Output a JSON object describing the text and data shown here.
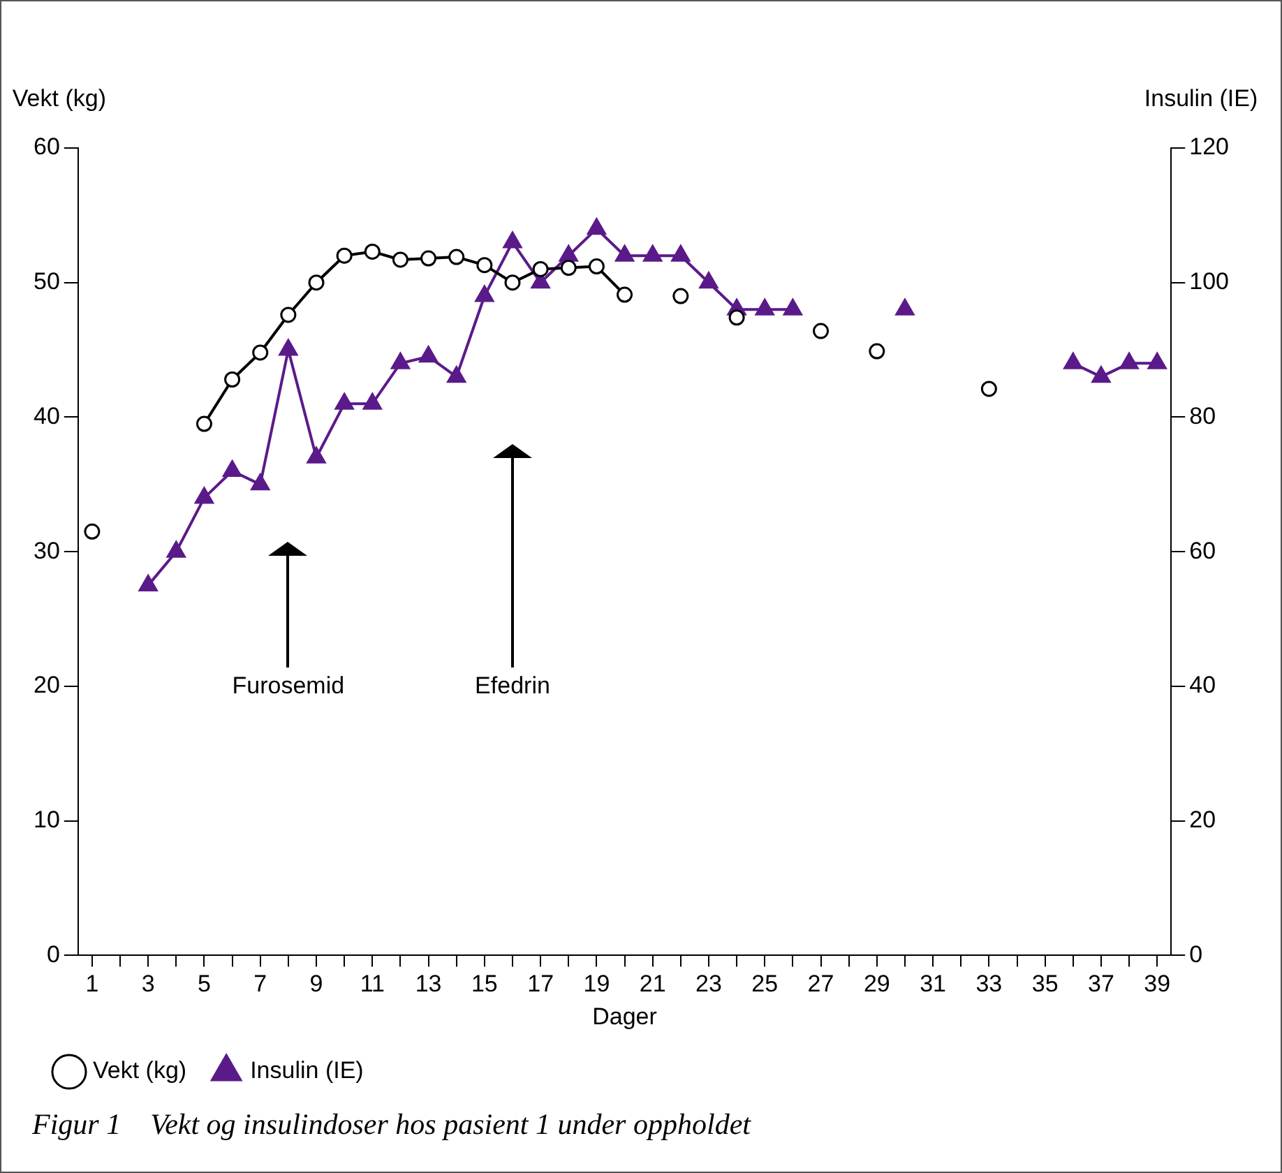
{
  "chart_data": {
    "type": "line",
    "xlabel": "Dager",
    "ylabel": "Vekt (kg)",
    "y2label": "Insulin (IE)",
    "x": [
      1,
      2,
      3,
      4,
      5,
      6,
      7,
      8,
      9,
      10,
      11,
      12,
      13,
      14,
      15,
      16,
      17,
      18,
      19,
      20,
      21,
      22,
      23,
      24,
      25,
      26,
      27,
      28,
      29,
      30,
      31,
      32,
      33,
      34,
      35,
      36,
      37,
      38,
      39
    ],
    "xlim": [
      0.5,
      39.5
    ],
    "xticks": [
      1,
      {
        "value": 2,
        "label": null
      },
      3,
      {
        "value": 4,
        "label": null
      },
      5,
      {
        "value": 6,
        "label": null
      },
      7,
      {
        "value": 8,
        "label": null
      },
      9,
      {
        "value": 10,
        "label": null
      },
      11,
      {
        "value": 12,
        "label": null
      },
      13,
      {
        "value": 14,
        "label": null
      },
      15,
      {
        "value": 16,
        "label": null
      },
      17,
      {
        "value": 18,
        "label": null
      },
      19,
      {
        "value": 20,
        "label": null
      },
      21,
      {
        "value": 22,
        "label": null
      },
      23,
      {
        "value": 24,
        "label": null
      },
      25,
      {
        "value": 26,
        "label": null
      },
      27,
      {
        "value": 28,
        "label": null
      },
      29,
      {
        "value": 30,
        "label": null
      },
      31,
      {
        "value": 32,
        "label": null
      },
      33,
      {
        "value": 34,
        "label": null
      },
      35,
      {
        "value": 36,
        "label": null
      },
      37,
      {
        "value": 38,
        "label": null
      },
      39
    ],
    "ylim": [
      0,
      60
    ],
    "yticks": [
      0,
      10,
      20,
      30,
      40,
      50,
      60
    ],
    "y2lim": [
      0,
      120
    ],
    "y2ticks": [
      0,
      20,
      40,
      60,
      80,
      100,
      120
    ],
    "grid": false,
    "legend": "bottom left",
    "series": [
      {
        "name": "Vekt (kg)",
        "color": "#000000",
        "marker": "circle",
        "values": [
          31.5,
          null,
          null,
          null,
          39.5,
          42.8,
          44.8,
          47.6,
          50,
          52,
          52.3,
          51.7,
          51.8,
          51.9,
          51.3,
          50,
          51,
          51.1,
          51.2,
          49.1,
          null,
          49,
          null,
          47.4,
          null,
          null,
          46.4,
          null,
          44.9,
          null,
          null,
          null,
          42.1,
          null,
          null,
          null,
          null,
          null,
          null
        ]
      },
      {
        "name": "Insulin (IE)",
        "color": "#5b1a8a",
        "marker": "triangle",
        "axis": "y2",
        "values": [
          null,
          null,
          55,
          60,
          68,
          72,
          70,
          90,
          74,
          82,
          82,
          88,
          89,
          86,
          98,
          106,
          100,
          104,
          108,
          104,
          104,
          104,
          100,
          96,
          96,
          96,
          null,
          null,
          null,
          96,
          null,
          null,
          null,
          null,
          null,
          88,
          86,
          88,
          88
        ]
      }
    ],
    "ref_lines": [
      {
        "axis": "x",
        "value": 8,
        "label": "Furosemid"
      },
      {
        "axis": "x",
        "value": 16,
        "label": "Efedrin"
      }
    ],
    "annotations": [
      "Figur 1    Vekt og insulindoser hos pasient 1 under oppholdet"
    ]
  }
}
